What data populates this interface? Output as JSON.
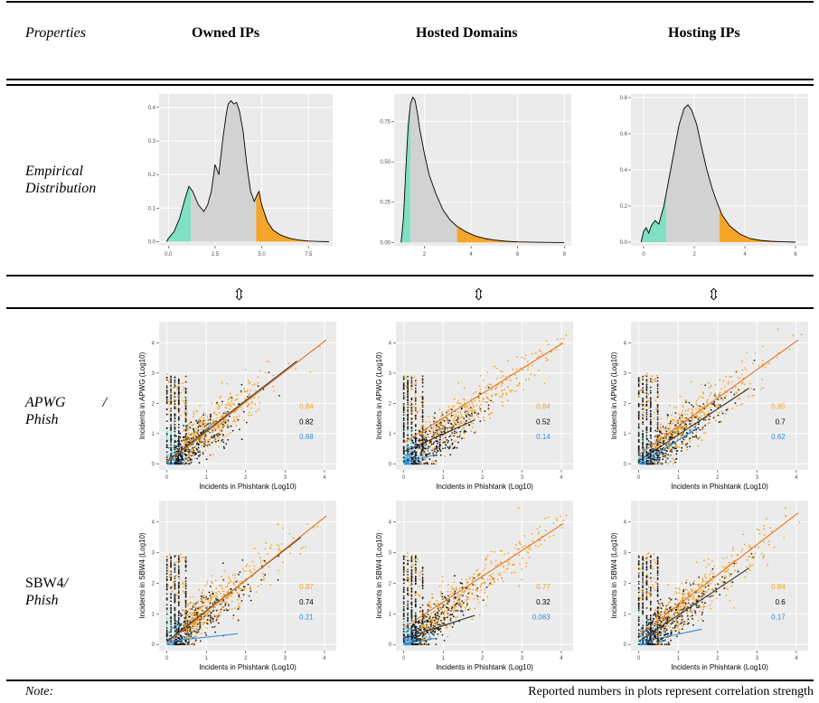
{
  "table": {
    "headers": {
      "properties": "Properties",
      "owned_ips": "Owned IPs",
      "hosted_domains": "Hosted Domains",
      "hosting_ips": "Hosting IPs"
    },
    "rows": {
      "empirical": [
        "Empirical",
        "Distribution"
      ],
      "apwg": {
        "line1_left": "APWG",
        "line1_right": "/",
        "line2": "Phish"
      },
      "sbw4": {
        "line1_prefix": "SBW4",
        "line1_suffix": "/",
        "line2": "Phish"
      }
    },
    "arrow_glyph": "⇳",
    "note_label": "Note:",
    "note_text": "Reported numbers in plots represent correlation strength"
  },
  "colors": {
    "panel_bg": "#ebebeb",
    "grid": "#ffffff",
    "teal": "#7fe0c4",
    "gray_fill": "#d2d2d2",
    "orange": "#f4a52a",
    "black": "#1a1a1a",
    "blue": "#2e8fe0",
    "fit_orange": "#e5731b"
  },
  "chart_data": [
    {
      "type": "area",
      "id": "dist-owned",
      "xlabel": "",
      "ylabel": "",
      "xlim": [
        -0.5,
        8.8
      ],
      "ylim": [
        -0.012,
        0.44
      ],
      "xticks": [
        "0.0",
        "2.5",
        "5.0",
        "7.5"
      ],
      "xtick_values": [
        0,
        2.5,
        5,
        7.5
      ],
      "yticks": [
        "0.0",
        "0.1",
        "0.2",
        "0.3",
        "0.4"
      ],
      "ytick_values": [
        0,
        0.1,
        0.2,
        0.3,
        0.4
      ],
      "low_cut": 1.2,
      "high_cut": 4.7,
      "x": [
        -0.1,
        0.0,
        0.3,
        0.6,
        0.9,
        1.1,
        1.3,
        1.6,
        1.9,
        2.1,
        2.3,
        2.5,
        2.7,
        2.9,
        3.1,
        3.2,
        3.35,
        3.5,
        3.65,
        3.8,
        4.0,
        4.2,
        4.4,
        4.6,
        4.75,
        4.85,
        5.0,
        5.3,
        5.6,
        6.0,
        6.5,
        7.0,
        7.5,
        8.0,
        8.6
      ],
      "y": [
        0.0,
        0.01,
        0.03,
        0.07,
        0.13,
        0.165,
        0.15,
        0.11,
        0.09,
        0.11,
        0.15,
        0.23,
        0.2,
        0.3,
        0.38,
        0.41,
        0.42,
        0.41,
        0.415,
        0.39,
        0.33,
        0.23,
        0.15,
        0.12,
        0.14,
        0.15,
        0.11,
        0.06,
        0.035,
        0.02,
        0.01,
        0.005,
        0.002,
        0.001,
        0.0
      ]
    },
    {
      "type": "area",
      "id": "dist-hosted",
      "xlabel": "",
      "ylabel": "",
      "xlim": [
        0.7,
        8.3
      ],
      "ylim": [
        -0.02,
        0.92
      ],
      "xticks": [
        "2",
        "4",
        "6",
        "8"
      ],
      "xtick_values": [
        2,
        4,
        6,
        8
      ],
      "yticks": [
        "0.00",
        "0.25",
        "0.50",
        "0.75"
      ],
      "ytick_values": [
        0,
        0.25,
        0.5,
        0.75
      ],
      "low_cut": 1.4,
      "high_cut": 3.4,
      "x": [
        1.0,
        1.1,
        1.2,
        1.3,
        1.4,
        1.5,
        1.6,
        1.7,
        1.8,
        2.0,
        2.2,
        2.5,
        2.8,
        3.1,
        3.4,
        3.8,
        4.2,
        4.6,
        5.0,
        5.5,
        6.0,
        7.0,
        8.0
      ],
      "y": [
        0.0,
        0.15,
        0.45,
        0.72,
        0.86,
        0.9,
        0.88,
        0.8,
        0.7,
        0.55,
        0.42,
        0.3,
        0.2,
        0.14,
        0.1,
        0.065,
        0.04,
        0.025,
        0.015,
        0.008,
        0.004,
        0.001,
        0.0
      ]
    },
    {
      "type": "area",
      "id": "dist-hosting",
      "xlabel": "",
      "ylabel": "",
      "xlim": [
        -0.5,
        6.5
      ],
      "ylim": [
        -0.02,
        0.82
      ],
      "xticks": [
        "0",
        "2",
        "4",
        "6"
      ],
      "xtick_values": [
        0,
        2,
        4,
        6
      ],
      "yticks": [
        "0.0",
        "0.2",
        "0.4",
        "0.6",
        "0.8"
      ],
      "ytick_values": [
        0,
        0.2,
        0.4,
        0.6,
        0.8
      ],
      "low_cut": 0.9,
      "high_cut": 3.0,
      "x": [
        -0.1,
        0.0,
        0.1,
        0.2,
        0.3,
        0.45,
        0.6,
        0.8,
        1.0,
        1.2,
        1.4,
        1.6,
        1.75,
        1.9,
        2.1,
        2.3,
        2.5,
        2.7,
        2.9,
        3.1,
        3.4,
        3.8,
        4.2,
        4.6,
        5.0,
        5.5,
        6.0
      ],
      "y": [
        0.0,
        0.06,
        0.08,
        0.05,
        0.09,
        0.12,
        0.1,
        0.2,
        0.35,
        0.5,
        0.65,
        0.74,
        0.76,
        0.73,
        0.65,
        0.52,
        0.4,
        0.3,
        0.22,
        0.15,
        0.09,
        0.045,
        0.02,
        0.01,
        0.005,
        0.002,
        0.0
      ]
    },
    {
      "type": "scatter",
      "id": "apwg-owned",
      "xlabel": "Incidents in Phishtank (Log10)",
      "ylabel": "Incidents in APWG (Log10)",
      "xlim": [
        -0.2,
        4.3
      ],
      "ylim": [
        -0.2,
        4.7
      ],
      "xticks": [
        "0",
        "1",
        "2",
        "3",
        "4"
      ],
      "yticks": [
        "0",
        "1",
        "2",
        "3",
        "4"
      ],
      "correlations": [
        {
          "series": "orange",
          "value": "0.84"
        },
        {
          "series": "black",
          "value": "0.82"
        },
        {
          "series": "blue",
          "value": "0.68"
        }
      ],
      "fit_lines": {
        "orange": [
          0,
          0.05,
          4.05,
          4.1
        ],
        "black": [
          0,
          0.08,
          3.3,
          3.4
        ],
        "blue": [
          0.6,
          0.6,
          1.2,
          1.4
        ]
      },
      "spread": {
        "orange": 2.4,
        "black": 1.4,
        "blue": 0.5
      }
    },
    {
      "type": "scatter",
      "id": "apwg-hosted",
      "xlabel": "Incidents in Phishtank (Log10)",
      "ylabel": "Incidents in APWG (Log10)",
      "xlim": [
        -0.2,
        4.3
      ],
      "ylim": [
        -0.2,
        4.7
      ],
      "xticks": [
        "0",
        "1",
        "2",
        "3",
        "4"
      ],
      "yticks": [
        "0",
        "1",
        "2",
        "3",
        "4"
      ],
      "correlations": [
        {
          "series": "orange",
          "value": "0.84"
        },
        {
          "series": "black",
          "value": "0.52"
        },
        {
          "series": "blue",
          "value": "0.14"
        }
      ],
      "fit_lines": {
        "orange": [
          0,
          0.7,
          4.05,
          4.0
        ],
        "black": [
          0,
          0.4,
          1.8,
          1.45
        ],
        "blue": [
          0,
          0.05,
          0.8,
          0.3
        ]
      },
      "spread": {
        "orange": 3.9,
        "black": 1.3,
        "blue": 0.4
      }
    },
    {
      "type": "scatter",
      "id": "apwg-hosting",
      "xlabel": "Incidents in Phishtank (Log10)",
      "ylabel": "Incidents in APWG (Log10)",
      "xlim": [
        -0.2,
        4.3
      ],
      "ylim": [
        -0.2,
        4.7
      ],
      "xticks": [
        "0",
        "1",
        "2",
        "3",
        "4"
      ],
      "yticks": [
        "0",
        "1",
        "2",
        "3",
        "4"
      ],
      "correlations": [
        {
          "series": "orange",
          "value": "0.85"
        },
        {
          "series": "black",
          "value": "0.7"
        },
        {
          "series": "blue",
          "value": "0.62"
        }
      ],
      "fit_lines": {
        "orange": [
          0,
          0.3,
          4.05,
          4.1
        ],
        "black": [
          0,
          0.1,
          2.8,
          2.5
        ],
        "blue": [
          0.3,
          0.2,
          1.5,
          1.2
        ]
      },
      "spread": {
        "orange": 3.0,
        "black": 1.6,
        "blue": 0.6
      }
    },
    {
      "type": "scatter",
      "id": "sbw4-owned",
      "xlabel": "Incidents in Phishtank (Log10)",
      "ylabel": "Incidents in SBW4 (Log10)",
      "xlim": [
        -0.2,
        4.3
      ],
      "ylim": [
        -0.2,
        4.7
      ],
      "xticks": [
        "0",
        "1",
        "2",
        "3",
        "4"
      ],
      "yticks": [
        "0",
        "1",
        "2",
        "3",
        "4"
      ],
      "correlations": [
        {
          "series": "orange",
          "value": "0.87"
        },
        {
          "series": "black",
          "value": "0.74"
        },
        {
          "series": "blue",
          "value": "0.21"
        }
      ],
      "fit_lines": {
        "orange": [
          0,
          0.05,
          4.05,
          4.2
        ],
        "black": [
          0,
          0.1,
          3.4,
          3.5
        ],
        "blue": [
          0,
          0.1,
          1.8,
          0.35
        ]
      },
      "spread": {
        "orange": 2.5,
        "black": 1.5,
        "blue": 0.5
      }
    },
    {
      "type": "scatter",
      "id": "sbw4-hosted",
      "xlabel": "Incidents in Phishtank (Log10)",
      "ylabel": "Incidents in SBW4 (Log10)",
      "xlim": [
        -0.2,
        4.3
      ],
      "ylim": [
        -0.2,
        4.7
      ],
      "xticks": [
        "0",
        "1",
        "2",
        "3",
        "4"
      ],
      "yticks": [
        "0",
        "1",
        "2",
        "3",
        "4"
      ],
      "correlations": [
        {
          "series": "orange",
          "value": "0.77"
        },
        {
          "series": "black",
          "value": "0.32"
        },
        {
          "series": "blue",
          "value": "0.083"
        }
      ],
      "fit_lines": {
        "orange": [
          0,
          0.55,
          4.05,
          3.95
        ],
        "black": [
          0,
          0.2,
          1.8,
          0.95
        ],
        "blue": [
          0,
          0.02,
          0.8,
          0.2
        ]
      },
      "spread": {
        "orange": 4.0,
        "black": 1.3,
        "blue": 0.4
      }
    },
    {
      "type": "scatter",
      "id": "sbw4-hosting",
      "xlabel": "Incidents in Phishtank (Log10)",
      "ylabel": "Incidents in SBW4 (Log10)",
      "xlim": [
        -0.2,
        4.3
      ],
      "ylim": [
        -0.2,
        4.7
      ],
      "xticks": [
        "0",
        "1",
        "2",
        "3",
        "4"
      ],
      "yticks": [
        "0",
        "1",
        "2",
        "3",
        "4"
      ],
      "correlations": [
        {
          "series": "orange",
          "value": "0.84"
        },
        {
          "series": "black",
          "value": "0.6"
        },
        {
          "series": "blue",
          "value": "0.17"
        }
      ],
      "fit_lines": {
        "orange": [
          0,
          0.3,
          4.05,
          4.3
        ],
        "black": [
          0,
          0.1,
          2.8,
          2.5
        ],
        "blue": [
          0.5,
          0.2,
          1.6,
          0.5
        ]
      },
      "spread": {
        "orange": 3.2,
        "black": 1.6,
        "blue": 0.6
      }
    }
  ]
}
